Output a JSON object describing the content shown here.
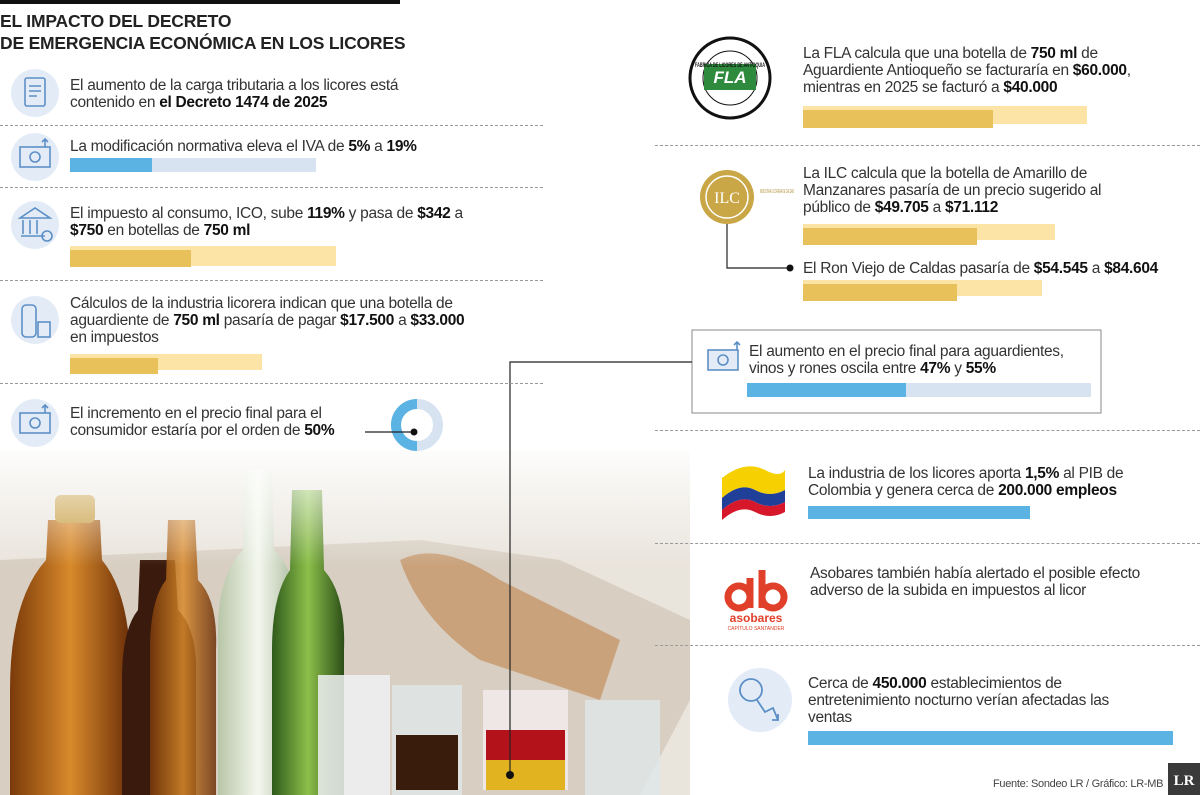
{
  "header": {
    "title": [
      "EL IMPACTO DEL DECRETO",
      "DE EMERGENCIA ECONÓMICA EN LOS LICORES"
    ]
  },
  "left_items": [
    {
      "text": [
        "El aumento de la carga tributaria a los licores está contenido en ",
        "el Decreto 1474 de 2025"
      ]
    },
    {
      "text": [
        "La modificación normativa eleva el IVA de ",
        "5%",
        " a ",
        "19%"
      ]
    },
    {
      "text": [
        "El impuesto al consumo, ICO, sube ",
        "119%",
        " y pasa de ",
        "$342",
        " a ",
        "$750",
        " en botellas de ",
        "750 ml"
      ]
    },
    {
      "text": [
        "Cálculos de la industria licorera indican que una botella de aguardiente de ",
        "750 ml",
        " pasaría de pagar ",
        "$17.500",
        " a ",
        "$33.000",
        " en impuestos"
      ]
    },
    {
      "text": [
        "El incremento en el precio final para el consumidor estaría por el orden de ",
        "50%"
      ]
    }
  ],
  "right_items": [
    {
      "text": [
        "La FLA calcula que una botella de ",
        "750 ml",
        " de Aguardiente Antioqueño se facturaría en ",
        "$60.000",
        ", mientras en 2025 se facturó a ",
        "$40.000"
      ]
    },
    {
      "text": [
        "La ILC calcula que la botella de Amarillo de Manzanares pasaría de un precio sugerido al público de ",
        "$49.705",
        " a ",
        "$71.112"
      ]
    },
    {
      "text": [
        "El Ron Viejo de Caldas pasaría de ",
        "$54.545",
        " a ",
        "$84.604"
      ]
    },
    {
      "text": [
        "El aumento en el precio final para aguardientes, vinos y rones oscila entre ",
        "47%",
        " y ",
        "55%"
      ]
    },
    {
      "text": [
        "La industria de los licores aporta ",
        "1,5%",
        " al PIB de Colombia y genera cerca de ",
        "200.000 empleos"
      ]
    },
    {
      "text": [
        "Asobares también había alertado el posible efecto adverso de la subida en impuestos al licor"
      ]
    },
    {
      "text": [
        "Cerca de ",
        "450.000",
        " establecimientos de entretenimiento nocturno verían afectadas las ventas"
      ]
    }
  ],
  "logos": {
    "fla_ring": "FABRICA DE LICORES DE ANTIOQUIA",
    "fla": "FLA",
    "ilc": "ILC",
    "ilc_name": "INDUSTRIA LICORERA DE CALDAS",
    "asobares": "asobares",
    "asobares_sub": "CAPÍTULO SANTANDER",
    "lr": "LR"
  },
  "footer": {
    "source": "Fuente: Sondeo LR / Gráfico: LR-MB"
  }
}
